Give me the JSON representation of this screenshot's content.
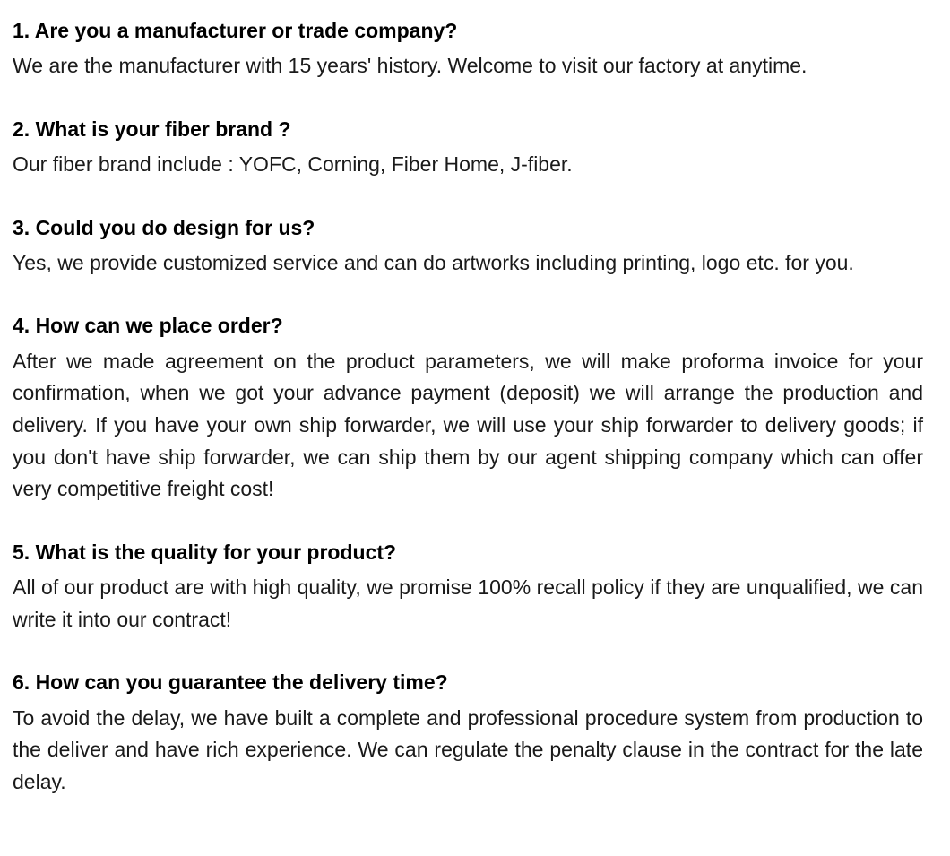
{
  "faq": {
    "text_color": "#111111",
    "background_color": "#ffffff",
    "question_font_weight": "bold",
    "question_fontsize": 23,
    "answer_fontsize": 23,
    "items": [
      {
        "question": "1. Are you a manufacturer or trade company?",
        "answer": "We are the manufacturer with 15 years' history. Welcome to visit our factory at anytime.",
        "justified": false
      },
      {
        "question": "2. What is your fiber brand ?",
        "answer": "Our fiber brand include : YOFC, Corning, Fiber Home, J-fiber.",
        "justified": false
      },
      {
        "question": "3. Could you do design for us?",
        "answer": "Yes, we provide customized service and can do artworks including printing, logo etc. for you.",
        "justified": false
      },
      {
        "question": "4. How can we place order?",
        "answer": "After we made agreement on the product parameters, we will make proforma invoice for your confirmation, when we got your advance payment (deposit) we will arrange the production and delivery. If you have your own ship forwarder, we will use your ship forwarder to delivery goods; if you don't have ship forwarder, we can ship them by our agent shipping company which can offer very competitive freight cost!",
        "justified": true
      },
      {
        "question": "5. What is the quality for your product?",
        "answer": "All of our product are with high quality, we promise 100% recall policy if they are unqualified, we can write it into our contract!",
        "justified": true
      },
      {
        "question": "6. How can you guarantee the delivery time?",
        "answer": "To avoid the delay, we have built a complete and professional procedure system from production to the deliver and have rich experience. We can regulate the penalty clause in the contract for the late delay.",
        "justified": true
      }
    ]
  }
}
